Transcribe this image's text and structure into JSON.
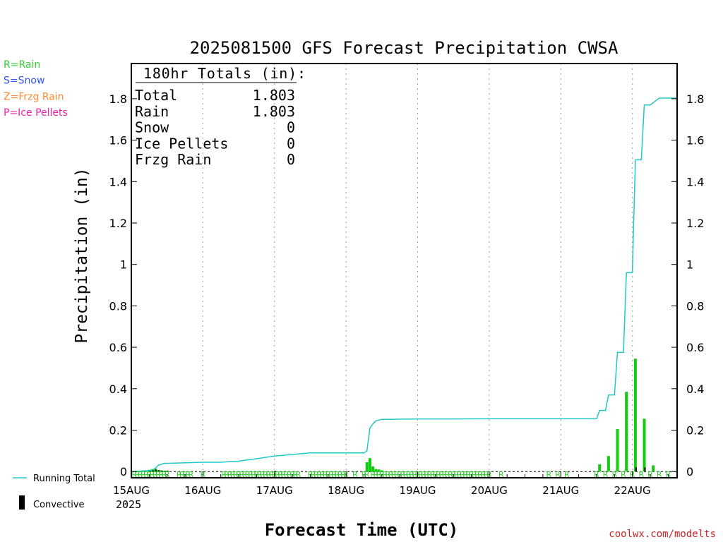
{
  "chart_data": {
    "type": "bar",
    "title": "2025081500 GFS Forecast Precipitation CWSA",
    "ylabel": "Precipitation (in)",
    "xlabel": "Forecast Time (UTC)",
    "year_label": "2025",
    "ylim": [
      -0.03,
      1.97
    ],
    "y_ticks": [
      0,
      0.2,
      0.4,
      0.6,
      0.8,
      1,
      1.2,
      1.4,
      1.6,
      1.8
    ],
    "y_tick_labels": [
      "0",
      "0.2",
      "0.4",
      "0.6",
      "0.8",
      "1",
      "1.2",
      "1.4",
      "1.6",
      "1.8"
    ],
    "xlim_hours": [
      0,
      183
    ],
    "x_ticks_hours": [
      0,
      24,
      48,
      72,
      96,
      120,
      144,
      168
    ],
    "x_tick_labels": [
      "15AUG",
      "16AUG",
      "17AUG",
      "18AUG",
      "19AUG",
      "20AUG",
      "21AUG",
      "22AUG"
    ],
    "grid": "vertical dotted at day boundaries",
    "totals_box": {
      "header": "180hr Totals (in):",
      "rows": [
        {
          "label": "Total",
          "value": "1.803"
        },
        {
          "label": "Rain",
          "value": "1.803"
        },
        {
          "label": "Snow",
          "value": "0"
        },
        {
          "label": "Ice Pellets",
          "value": "0"
        },
        {
          "label": "Frzg Rain",
          "value": "0"
        }
      ]
    },
    "type_legend": [
      {
        "text": "R=Rain",
        "color": "#33cc33"
      },
      {
        "text": "S=Snow",
        "color": "#3355ee"
      },
      {
        "text": "Z=Frzg Rain",
        "color": "#ff8833"
      },
      {
        "text": "P=Ice Pellets",
        "color": "#ee22aa"
      }
    ],
    "series": [
      {
        "name": "Running Total",
        "color": "#22c8c8",
        "x": [
          0,
          6,
          7,
          8,
          9,
          10,
          11,
          12,
          24,
          30,
          33,
          36,
          38,
          40,
          42,
          48,
          60,
          78,
          79,
          80,
          81,
          82,
          84,
          87,
          90,
          93,
          96,
          108,
          120,
          144,
          156,
          157,
          159,
          160,
          162,
          163,
          165,
          166,
          168,
          169,
          171,
          172,
          174,
          177,
          180,
          183
        ],
        "y": [
          0,
          0.005,
          0.008,
          0.015,
          0.03,
          0.035,
          0.04,
          0.04,
          0.045,
          0.045,
          0.048,
          0.05,
          0.055,
          0.058,
          0.062,
          0.075,
          0.09,
          0.09,
          0.1,
          0.21,
          0.23,
          0.245,
          0.252,
          0.252,
          0.253,
          0.253,
          0.254,
          0.254,
          0.255,
          0.255,
          0.255,
          0.295,
          0.295,
          0.37,
          0.37,
          0.575,
          0.575,
          0.96,
          0.96,
          1.505,
          1.505,
          1.77,
          1.77,
          1.803,
          1.803,
          1.803
        ]
      },
      {
        "name": "Rain",
        "color": "#11cc11",
        "x": [
          6,
          7,
          8,
          9,
          10,
          11,
          12,
          79,
          80,
          81,
          82,
          83,
          84,
          157,
          160,
          163,
          166,
          169,
          172,
          175
        ],
        "y": [
          0.008,
          0.012,
          0.015,
          0.008,
          0.006,
          0.004,
          0.005,
          0.045,
          0.065,
          0.025,
          0.012,
          0.01,
          0.006,
          0.035,
          0.075,
          0.205,
          0.385,
          0.545,
          0.255,
          0.03
        ]
      },
      {
        "name": "Convective",
        "color": "#000000",
        "x": [
          6,
          7,
          8,
          9,
          10,
          11,
          12,
          48,
          169,
          172
        ],
        "y": [
          0.004,
          0.006,
          0.01,
          0.006,
          0.004,
          0.003,
          0.004,
          0.004,
          0.02,
          0.02
        ]
      }
    ],
    "rain_marker_text": "R",
    "rain_marker_hours": [
      1,
      2,
      3,
      4,
      5,
      6,
      7,
      8,
      9,
      10,
      11,
      12,
      16,
      17,
      18,
      19,
      20,
      24,
      31,
      32,
      33,
      34,
      35,
      36,
      37,
      38,
      39,
      40,
      41,
      42,
      43,
      44,
      45,
      46,
      47,
      48,
      49,
      50,
      51,
      52,
      53,
      54,
      55,
      56,
      60,
      61,
      62,
      63,
      64,
      65,
      66,
      67,
      68,
      69,
      70,
      71,
      72,
      75,
      78,
      79,
      81,
      82,
      83,
      84,
      85,
      86,
      87,
      88,
      89,
      90,
      91,
      92,
      93,
      94,
      95,
      96,
      97,
      98,
      99,
      100,
      101,
      102,
      103,
      104,
      105,
      106,
      107,
      108,
      109,
      110,
      111,
      112,
      113,
      114,
      115,
      116,
      117,
      118,
      119,
      120,
      124,
      140,
      143,
      146,
      156,
      159,
      162,
      165,
      168,
      171,
      174,
      177,
      180
    ],
    "bottom_legend": {
      "running_total_label": "Running Total",
      "convective_label": "Convective"
    },
    "credit": "coolwx.com/modelts"
  }
}
